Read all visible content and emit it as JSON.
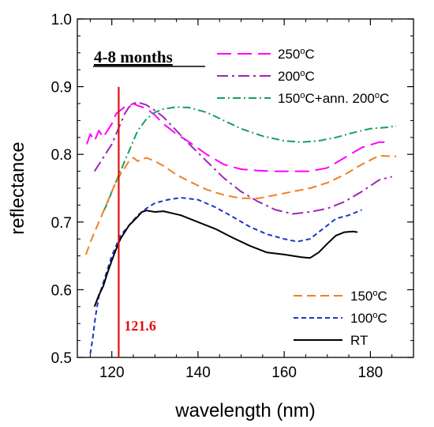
{
  "chart_data": {
    "type": "line",
    "title": "",
    "annotation_period": "4-8 months",
    "xlabel": "wavelength (nm)",
    "ylabel": "reflectance",
    "xlim": [
      112,
      190
    ],
    "ylim": [
      0.5,
      1.0
    ],
    "xticks": [
      120,
      140,
      160,
      180
    ],
    "yticks": [
      0.5,
      0.6,
      0.7,
      0.8,
      0.9,
      1.0
    ],
    "grid": false,
    "vline": {
      "x": 121.6,
      "label": "121.6",
      "color": "#e01010"
    },
    "legend_top": [
      "250C",
      "200C",
      "150C+ann"
    ],
    "legend_bottom": [
      "150C",
      "100C",
      "RT"
    ],
    "series": [
      {
        "key": "250C",
        "name_main": "250",
        "name_sup": "o",
        "name_rest": "C",
        "color": "#ff00ff",
        "dash": "18,8",
        "x": [
          114.2,
          115,
          116,
          117,
          118,
          119,
          120,
          121,
          122,
          123,
          124,
          125,
          126,
          128,
          130,
          132,
          135,
          138,
          142,
          146,
          150,
          154,
          158,
          162,
          166,
          170,
          174,
          178,
          182,
          184
        ],
        "y": [
          0.815,
          0.83,
          0.82,
          0.835,
          0.825,
          0.835,
          0.845,
          0.86,
          0.865,
          0.87,
          0.872,
          0.875,
          0.872,
          0.868,
          0.858,
          0.845,
          0.83,
          0.818,
          0.8,
          0.785,
          0.778,
          0.776,
          0.775,
          0.775,
          0.775,
          0.78,
          0.795,
          0.81,
          0.818,
          0.818
        ]
      },
      {
        "key": "200C",
        "name_main": "200",
        "name_sup": "o",
        "name_rest": "C",
        "color": "#9b27b5",
        "dash": "14,5,3,5",
        "x": [
          116,
          117,
          118,
          119,
          120,
          121,
          122,
          123,
          124,
          125,
          126,
          128,
          130,
          132,
          135,
          138,
          142,
          146,
          150,
          154,
          158,
          162,
          166,
          170,
          174,
          178,
          182,
          185
        ],
        "y": [
          0.775,
          0.785,
          0.795,
          0.805,
          0.815,
          0.83,
          0.845,
          0.86,
          0.87,
          0.875,
          0.877,
          0.873,
          0.865,
          0.855,
          0.835,
          0.815,
          0.79,
          0.765,
          0.745,
          0.73,
          0.718,
          0.712,
          0.715,
          0.72,
          0.73,
          0.745,
          0.762,
          0.767
        ]
      },
      {
        "key": "150C+ann",
        "name_main": "150",
        "name_sup": "o",
        "name_rest": "C+ann. 200",
        "name_sup2": "o",
        "name_rest2": "C",
        "color": "#14a05a",
        "dash": "10,4,2,4",
        "x": [
          118,
          119,
          120,
          121,
          122,
          123,
          124,
          125,
          126,
          128,
          130,
          132,
          135,
          138,
          142,
          146,
          150,
          155,
          160,
          164,
          168,
          172,
          176,
          180,
          184,
          186
        ],
        "y": [
          0.715,
          0.728,
          0.745,
          0.76,
          0.775,
          0.79,
          0.805,
          0.82,
          0.835,
          0.852,
          0.862,
          0.867,
          0.87,
          0.869,
          0.862,
          0.85,
          0.838,
          0.827,
          0.82,
          0.818,
          0.82,
          0.825,
          0.832,
          0.838,
          0.84,
          0.842
        ]
      },
      {
        "key": "150C",
        "name_main": "150",
        "name_sup": "o",
        "name_rest": "C",
        "color": "#f07f22",
        "dash": "11,6",
        "x": [
          114,
          115,
          116,
          117,
          118,
          119,
          120,
          121,
          122,
          123,
          124,
          125,
          126,
          128,
          130,
          132,
          135,
          138,
          142,
          146,
          150,
          154,
          158,
          162,
          166,
          170,
          174,
          178,
          182,
          186
        ],
        "y": [
          0.652,
          0.67,
          0.685,
          0.7,
          0.715,
          0.73,
          0.745,
          0.76,
          0.77,
          0.78,
          0.79,
          0.795,
          0.79,
          0.795,
          0.79,
          0.783,
          0.77,
          0.76,
          0.748,
          0.74,
          0.735,
          0.735,
          0.74,
          0.745,
          0.75,
          0.758,
          0.77,
          0.785,
          0.798,
          0.797
        ]
      },
      {
        "key": "100C",
        "name_main": "100",
        "name_sup": "o",
        "name_rest": "C",
        "color": "#1c35c8",
        "dash": "6,4",
        "x": [
          115,
          115.6,
          116.2,
          117,
          118,
          119,
          120,
          121,
          122,
          124,
          126,
          128,
          130,
          133,
          136,
          140,
          144,
          148,
          152,
          156,
          160,
          163,
          166,
          168,
          170,
          172,
          175,
          178
        ],
        "y": [
          0.505,
          0.53,
          0.56,
          0.59,
          0.61,
          0.63,
          0.65,
          0.665,
          0.68,
          0.695,
          0.71,
          0.72,
          0.728,
          0.733,
          0.736,
          0.733,
          0.722,
          0.708,
          0.693,
          0.682,
          0.675,
          0.671,
          0.675,
          0.685,
          0.695,
          0.705,
          0.71,
          0.718
        ]
      },
      {
        "key": "RT",
        "name_main": "RT",
        "name_sup": "",
        "name_rest": "",
        "color": "#000000",
        "dash": "",
        "x": [
          116,
          117,
          118,
          119,
          120,
          121,
          122,
          124,
          126,
          127,
          128,
          130,
          132,
          134,
          136,
          140,
          144,
          148,
          152,
          156,
          160,
          164,
          166,
          168,
          170,
          172,
          174,
          176,
          177
        ],
        "y": [
          0.575,
          0.592,
          0.605,
          0.625,
          0.643,
          0.66,
          0.675,
          0.695,
          0.708,
          0.715,
          0.717,
          0.715,
          0.716,
          0.713,
          0.71,
          0.7,
          0.69,
          0.677,
          0.665,
          0.655,
          0.652,
          0.648,
          0.647,
          0.655,
          0.668,
          0.68,
          0.685,
          0.686,
          0.685
        ]
      }
    ]
  }
}
